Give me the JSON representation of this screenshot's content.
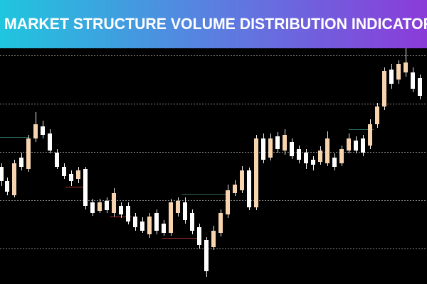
{
  "header": {
    "title": "MARKET STRUCTURE VOLUME DISTRIBUTION INDICATOR"
  }
}
